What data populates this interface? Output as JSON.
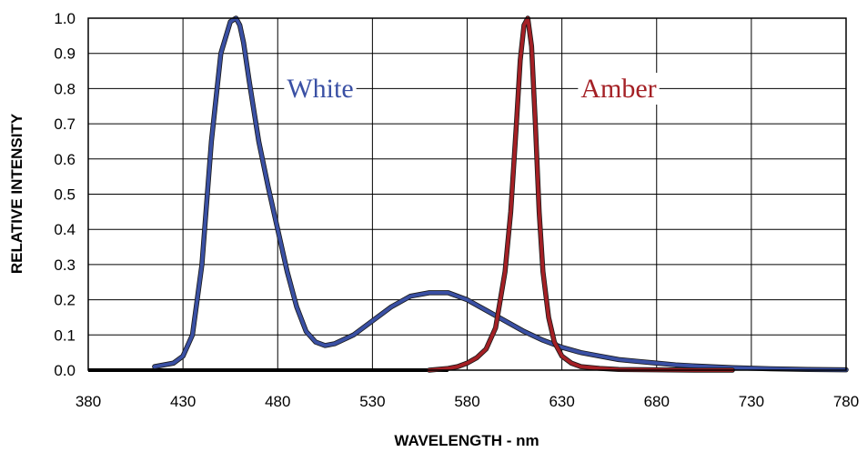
{
  "chart_data": {
    "type": "line",
    "title": "",
    "xlabel": "WAVELENGTH - nm",
    "ylabel": "RELATIVE INTENSITY",
    "xlim": [
      380,
      780
    ],
    "ylim": [
      0,
      1.0
    ],
    "grid": true,
    "x_ticks": [
      "380",
      "430",
      "480",
      "530",
      "580",
      "630",
      "680",
      "730",
      "780"
    ],
    "y_ticks": [
      "0.0",
      "0.1",
      "0.2",
      "0.3",
      "0.4",
      "0.5",
      "0.6",
      "0.7",
      "0.8",
      "0.9",
      "1.0"
    ],
    "baseline": {
      "color": "#000000",
      "x": [
        380,
        570
      ],
      "y": [
        0,
        0
      ]
    },
    "series": [
      {
        "name": "White",
        "color": "#3a50a4",
        "x": [
          415,
          425,
          430,
          435,
          440,
          445,
          450,
          455,
          458,
          460,
          462,
          465,
          470,
          475,
          480,
          485,
          490,
          495,
          500,
          505,
          510,
          520,
          530,
          540,
          550,
          560,
          565,
          570,
          575,
          580,
          590,
          600,
          610,
          620,
          630,
          640,
          650,
          660,
          670,
          680,
          690,
          700,
          720,
          740,
          760,
          780
        ],
        "y": [
          0.01,
          0.02,
          0.04,
          0.1,
          0.3,
          0.65,
          0.9,
          0.99,
          1.0,
          0.98,
          0.93,
          0.82,
          0.65,
          0.52,
          0.4,
          0.28,
          0.18,
          0.11,
          0.08,
          0.07,
          0.075,
          0.1,
          0.14,
          0.18,
          0.21,
          0.22,
          0.22,
          0.22,
          0.21,
          0.2,
          0.17,
          0.14,
          0.11,
          0.085,
          0.065,
          0.05,
          0.04,
          0.03,
          0.025,
          0.02,
          0.015,
          0.012,
          0.007,
          0.004,
          0.002,
          0.001
        ]
      },
      {
        "name": "Amber",
        "color": "#a42025",
        "x": [
          560,
          570,
          575,
          580,
          585,
          590,
          595,
          600,
          603,
          606,
          608,
          610,
          612,
          614,
          616,
          618,
          620,
          623,
          626,
          630,
          635,
          640,
          650,
          660,
          680,
          700,
          720
        ],
        "y": [
          0.0,
          0.005,
          0.01,
          0.02,
          0.035,
          0.06,
          0.12,
          0.28,
          0.45,
          0.7,
          0.88,
          0.98,
          1.0,
          0.92,
          0.7,
          0.45,
          0.28,
          0.15,
          0.08,
          0.04,
          0.02,
          0.01,
          0.005,
          0.002,
          0.001,
          0.0,
          0.0
        ]
      }
    ]
  }
}
